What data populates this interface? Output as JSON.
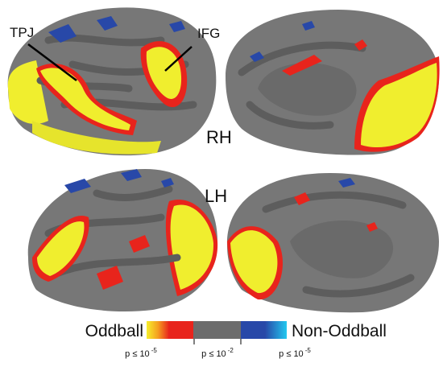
{
  "labels": {
    "tpj": "TPJ",
    "ifg": "IFG",
    "rh": "RH",
    "lh": "LH"
  },
  "legend": {
    "left": "Oddball",
    "right": "Non-Oddball",
    "ticks": [
      {
        "base": "p ≤ 10",
        "exponent": "-5"
      },
      {
        "base": "p ≤ 10",
        "exponent": "-2"
      },
      {
        "base": "p ≤ 10",
        "exponent": "-5"
      }
    ]
  }
}
